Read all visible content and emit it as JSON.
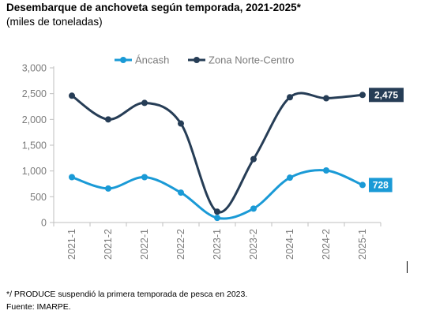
{
  "header": {
    "title": "Desembarque de anchoveta según temporada, 2021-2025*",
    "subtitle": "(miles de toneladas)"
  },
  "footer": {
    "note": "*/ PRODUCE suspendió la primera temporada de pesca en 2023.",
    "source": "Fuente: IMARPE."
  },
  "chart_data": {
    "type": "line",
    "title": "Desembarque de anchoveta según temporada, 2021-2025*",
    "subtitle": "(miles de toneladas)",
    "xlabel": "",
    "ylabel": "",
    "categories": [
      "2021-1",
      "2021-2",
      "2022-1",
      "2022-2",
      "2023-1",
      "2023-2",
      "2024-1",
      "2024-2",
      "2025-1"
    ],
    "ylim": [
      0,
      3000
    ],
    "yticks": [
      0,
      500,
      1000,
      1500,
      2000,
      2500,
      3000
    ],
    "ytick_labels": [
      "0",
      "500",
      "1,000",
      "1,500",
      "2,000",
      "2,500",
      "3,000"
    ],
    "grid": false,
    "legend_position": "top-center",
    "series": [
      {
        "name": "Áncash",
        "color": "#1a9ad6",
        "values": [
          880,
          660,
          880,
          580,
          90,
          270,
          870,
          1010,
          728
        ],
        "end_label": "728"
      },
      {
        "name": "Zona Norte-Centro",
        "color": "#263d56",
        "values": [
          2460,
          2000,
          2320,
          1920,
          210,
          1230,
          2430,
          2410,
          2475
        ],
        "end_label": "2,475"
      }
    ]
  }
}
